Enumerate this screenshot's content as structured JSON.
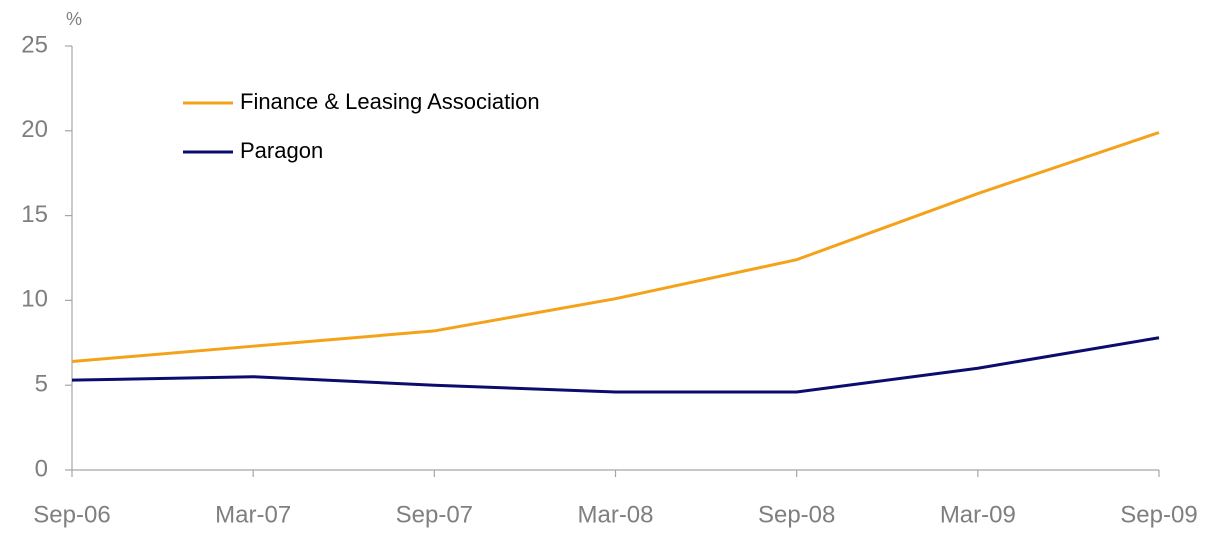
{
  "chart_data": {
    "type": "line",
    "y_label": "%",
    "categories": [
      "Sep-06",
      "Mar-07",
      "Sep-07",
      "Mar-08",
      "Sep-08",
      "Mar-09",
      "Sep-09"
    ],
    "series": [
      {
        "name": "Finance & Leasing Association",
        "color": "#f5a21b",
        "values": [
          6.4,
          7.3,
          8.2,
          10.1,
          12.4,
          16.3,
          19.9
        ]
      },
      {
        "name": "Paragon",
        "color": "#0c0c6e",
        "values": [
          5.3,
          5.5,
          5.0,
          4.6,
          4.6,
          6.0,
          7.8
        ]
      }
    ],
    "ylim": [
      0,
      25
    ],
    "yticks": [
      0,
      5,
      10,
      15,
      20,
      25
    ],
    "grid": false,
    "legend": "upper left"
  }
}
